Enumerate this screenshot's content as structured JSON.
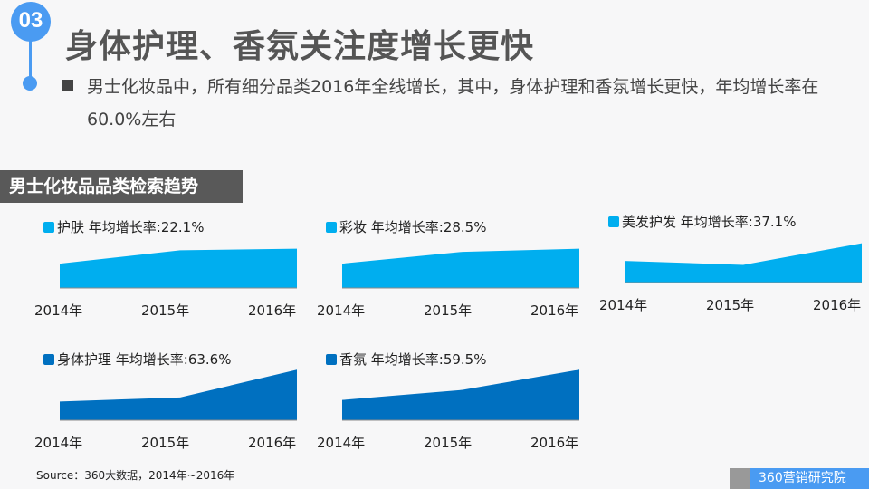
{
  "header": {
    "section_number": "03",
    "title": "身体护理、香氛关注度增长更快",
    "description": "男士化妆品中，所有细分品类2016年全线增长，其中，身体护理和香氛增长更快，年均增长率在60.0%左右"
  },
  "section_label": "男士化妆品品类检索趋势",
  "chart_data": [
    {
      "type": "area",
      "title": "护肤 年均增长率:22.1%",
      "categories": [
        "2014年",
        "2015年",
        "2016年"
      ],
      "values": [
        0.62,
        0.96,
        1.0
      ],
      "color": "#00aeef"
    },
    {
      "type": "area",
      "title": "彩妆 年均增长率:28.5%",
      "categories": [
        "2014年",
        "2015年",
        "2016年"
      ],
      "values": [
        0.62,
        0.92,
        1.0
      ],
      "color": "#00aeef"
    },
    {
      "type": "area",
      "title": "美发护发 年均增长率:37.1%",
      "categories": [
        "2014年",
        "2015年",
        "2016年"
      ],
      "values": [
        0.55,
        0.45,
        1.0
      ],
      "color": "#00aeef"
    },
    {
      "type": "area",
      "title": "身体护理 年均增长率:63.6%",
      "categories": [
        "2014年",
        "2015年",
        "2016年"
      ],
      "values": [
        0.37,
        0.45,
        1.0
      ],
      "color": "#0070c0"
    },
    {
      "type": "area",
      "title": "香氛 年均增长率:59.5%",
      "categories": [
        "2014年",
        "2015年",
        "2016年"
      ],
      "values": [
        0.4,
        0.6,
        1.0
      ],
      "color": "#0070c0"
    }
  ],
  "footer": {
    "source": "Source：360大数据，2014年~2016年",
    "brand": "360营销研究院"
  }
}
